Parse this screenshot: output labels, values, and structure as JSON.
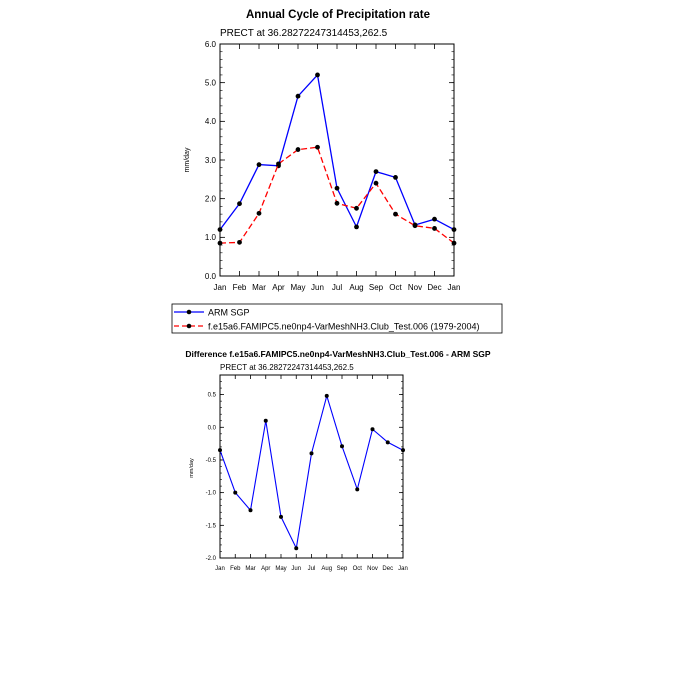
{
  "chart_data": [
    {
      "type": "line",
      "title": "Annual Cycle of Precipitation rate",
      "subtitle": "PRECT at 36.28272247314453,262.5",
      "xlabel": "",
      "ylabel": "mm/day",
      "categories": [
        "Jan",
        "Feb",
        "Mar",
        "Apr",
        "May",
        "Jun",
        "Jul",
        "Aug",
        "Sep",
        "Oct",
        "Nov",
        "Dec",
        "Jan"
      ],
      "yticks": [
        "0.0",
        "1.0",
        "2.0",
        "3.0",
        "4.0",
        "5.0",
        "6.0"
      ],
      "ylim": [
        0,
        6
      ],
      "series": [
        {
          "name": "ARM SGP",
          "color": "#0000ff",
          "dash": "solid",
          "values": [
            1.2,
            1.87,
            2.88,
            2.85,
            4.65,
            5.2,
            2.27,
            1.27,
            2.7,
            2.55,
            1.32,
            1.47,
            1.2
          ]
        },
        {
          "name": "f.e15a6.FAMIPC5.ne0np4-VarMeshNH3.Club_Test.006 (1979-2004)",
          "color": "#ff0000",
          "dash": "dashed",
          "values": [
            0.85,
            0.87,
            1.62,
            2.9,
            3.27,
            3.33,
            1.88,
            1.75,
            2.4,
            1.6,
            1.3,
            1.23,
            0.85
          ]
        }
      ],
      "legend": [
        "ARM SGP",
        "f.e15a6.FAMIPC5.ne0np4-VarMeshNH3.Club_Test.006 (1979-2004)"
      ]
    },
    {
      "type": "line",
      "title": "Difference f.e15a6.FAMIPC5.ne0np4-VarMeshNH3.Club_Test.006 - ARM SGP",
      "subtitle": "PRECT at 36.28272247314453,262.5",
      "xlabel": "",
      "ylabel": "mm/day",
      "categories": [
        "Jan",
        "Feb",
        "Mar",
        "Apr",
        "May",
        "Jun",
        "Jul",
        "Aug",
        "Sep",
        "Oct",
        "Nov",
        "Dec",
        "Jan"
      ],
      "yticks": [
        "-2.0",
        "-1.5",
        "-1.0",
        "-0.5",
        "0.0",
        "0.5"
      ],
      "ylim": [
        -2.0,
        0.8
      ],
      "series": [
        {
          "name": "Difference",
          "color": "#0000ff",
          "dash": "solid",
          "values": [
            -0.35,
            -1.0,
            -1.27,
            0.1,
            -1.37,
            -1.85,
            -0.4,
            0.48,
            -0.29,
            -0.95,
            -0.03,
            -0.23,
            -0.35
          ]
        }
      ]
    }
  ]
}
